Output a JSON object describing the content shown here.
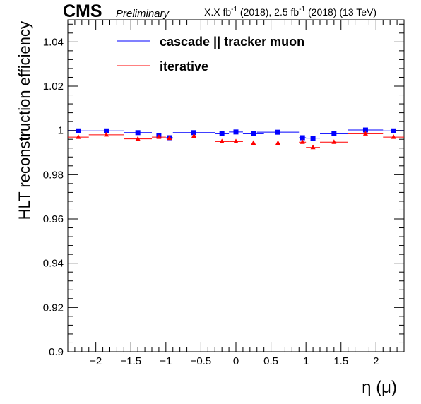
{
  "header": {
    "experiment": "CMS",
    "status": "Preliminary",
    "lumi_prefix": "X.X fb",
    "lumi_exp1": "-1",
    "lumi_mid": " (2018), 2.5 fb",
    "lumi_exp2": "-1",
    "lumi_suffix": " (2018) (13 TeV)"
  },
  "colors": {
    "blue": "#0000ff",
    "red": "#ff0000",
    "axis": "#000000"
  },
  "chart_data": {
    "type": "scatter",
    "xlabel": "η (μ)",
    "ylabel": "HLT reconstruction efficiency",
    "xlim": [
      -2.4,
      2.4
    ],
    "ylim": [
      0.9,
      1.05
    ],
    "xticks": [
      -2,
      -1.5,
      -1,
      -0.5,
      0,
      0.5,
      1,
      1.5,
      2
    ],
    "xtick_labels": [
      "−2",
      "−1.5",
      "−1",
      "−0.5",
      "0",
      "0.5",
      "1",
      "1.5",
      "2"
    ],
    "yticks": [
      0.9,
      0.92,
      0.94,
      0.96,
      0.98,
      1,
      1.02,
      1.04
    ],
    "ytick_labels": [
      "0.9",
      "0.92",
      "0.94",
      "0.96",
      "0.98",
      "1",
      "1.02",
      "1.04"
    ],
    "legend_position": "top-left",
    "series": [
      {
        "name": "cascade || tracker muon",
        "color": "#0000ff",
        "marker": "square",
        "points": [
          {
            "x": -2.25,
            "xerr": 0.15,
            "y": 0.9998
          },
          {
            "x": -1.85,
            "xerr": 0.25,
            "y": 0.9998
          },
          {
            "x": -1.4,
            "xerr": 0.2,
            "y": 0.999
          },
          {
            "x": -1.1,
            "xerr": 0.1,
            "y": 0.9975
          },
          {
            "x": -0.95,
            "xerr": 0.05,
            "y": 0.9967
          },
          {
            "x": -0.6,
            "xerr": 0.3,
            "y": 0.999
          },
          {
            "x": -0.2,
            "xerr": 0.1,
            "y": 0.9985
          },
          {
            "x": 0.0,
            "xerr": 0.1,
            "y": 0.9993
          },
          {
            "x": 0.25,
            "xerr": 0.15,
            "y": 0.9985
          },
          {
            "x": 0.6,
            "xerr": 0.3,
            "y": 0.9992
          },
          {
            "x": 0.95,
            "xerr": 0.05,
            "y": 0.9967
          },
          {
            "x": 1.1,
            "xerr": 0.1,
            "y": 0.9965
          },
          {
            "x": 1.4,
            "xerr": 0.2,
            "y": 0.9985
          },
          {
            "x": 1.85,
            "xerr": 0.25,
            "y": 1.0002
          },
          {
            "x": 2.25,
            "xerr": 0.15,
            "y": 0.9998
          }
        ]
      },
      {
        "name": "iterative",
        "color": "#ff0000",
        "marker": "triangle",
        "points": [
          {
            "x": -2.25,
            "xerr": 0.15,
            "y": 0.997
          },
          {
            "x": -1.85,
            "xerr": 0.25,
            "y": 0.998
          },
          {
            "x": -1.4,
            "xerr": 0.2,
            "y": 0.9962
          },
          {
            "x": -1.1,
            "xerr": 0.1,
            "y": 0.997
          },
          {
            "x": -0.95,
            "xerr": 0.05,
            "y": 0.9965
          },
          {
            "x": -0.6,
            "xerr": 0.3,
            "y": 0.9975
          },
          {
            "x": -0.2,
            "xerr": 0.1,
            "y": 0.995
          },
          {
            "x": 0.0,
            "xerr": 0.1,
            "y": 0.995
          },
          {
            "x": 0.25,
            "xerr": 0.15,
            "y": 0.9943
          },
          {
            "x": 0.6,
            "xerr": 0.3,
            "y": 0.9943
          },
          {
            "x": 0.95,
            "xerr": 0.05,
            "y": 0.9947
          },
          {
            "x": 1.1,
            "xerr": 0.1,
            "y": 0.9923
          },
          {
            "x": 1.4,
            "xerr": 0.2,
            "y": 0.9947
          },
          {
            "x": 1.85,
            "xerr": 0.25,
            "y": 0.9985
          },
          {
            "x": 2.25,
            "xerr": 0.15,
            "y": 0.997
          }
        ]
      }
    ]
  }
}
